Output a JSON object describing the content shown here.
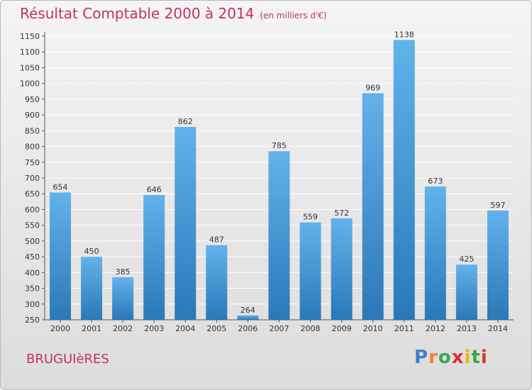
{
  "title": "Résultat Comptable 2000 à 2014",
  "unit_label": "(en milliers d'€)",
  "town": "BRUGUIèRES",
  "logo": {
    "letters": [
      "P",
      "r",
      "o",
      "x",
      "i",
      "t",
      "i"
    ],
    "colors": [
      "#3b7fc4",
      "#e8892a",
      "#3aa655",
      "#d9312b",
      "#f0b400",
      "#3aa655",
      "#d9312b"
    ]
  },
  "colors": {
    "bar_top": "#63b2ea",
    "bar_bottom": "#2a78b8",
    "title": "#c4306a",
    "grid": "#ffffff"
  },
  "chart_data": {
    "type": "bar",
    "title": "Résultat Comptable 2000 à 2014",
    "xlabel": "",
    "ylabel": "",
    "categories": [
      "2000",
      "2001",
      "2002",
      "2003",
      "2004",
      "2005",
      "2006",
      "2007",
      "2008",
      "2009",
      "2010",
      "2011",
      "2012",
      "2013",
      "2014"
    ],
    "values": [
      654,
      450,
      385,
      646,
      862,
      487,
      264,
      785,
      559,
      572,
      969,
      1138,
      673,
      425,
      597
    ],
    "ylim": [
      250,
      1150
    ],
    "yticks": [
      250,
      300,
      350,
      400,
      450,
      500,
      550,
      600,
      650,
      700,
      750,
      800,
      850,
      900,
      950,
      1000,
      1050,
      1100,
      1150
    ],
    "grid": true
  }
}
